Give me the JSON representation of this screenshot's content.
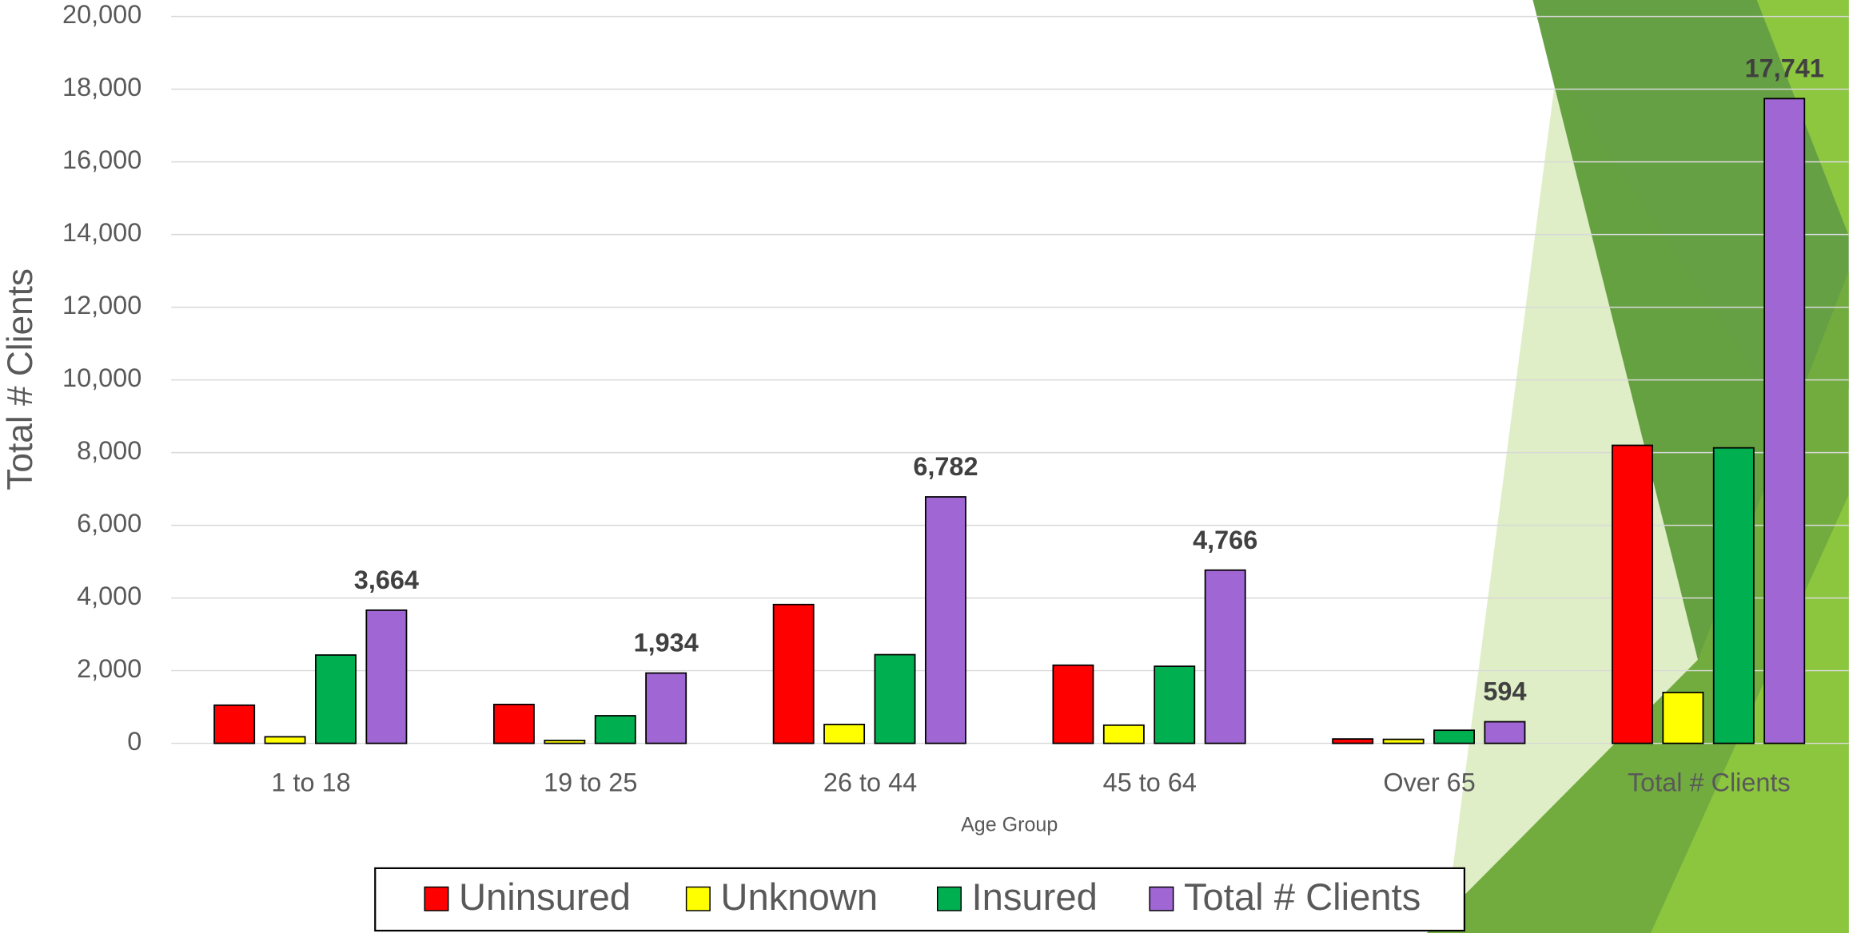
{
  "chart_data": {
    "type": "bar",
    "x_label": "Age Group",
    "y_label": "Total # Clients",
    "categories": [
      "1 to 18",
      "19 to 25",
      "26 to 44",
      "45 to 64",
      "Over 65",
      "Total # Clients"
    ],
    "series": [
      {
        "name": "Uninsured",
        "color": "#ff0000",
        "values": [
          1050,
          1070,
          3820,
          2150,
          120,
          8200
        ]
      },
      {
        "name": "Unknown",
        "color": "#ffff00",
        "values": [
          180,
          80,
          520,
          500,
          110,
          1400
        ]
      },
      {
        "name": "Insured",
        "color": "#00b050",
        "values": [
          2430,
          760,
          2440,
          2120,
          360,
          8130
        ]
      },
      {
        "name": "Total # Clients",
        "color": "#a066d3",
        "values": [
          3664,
          1934,
          6782,
          4766,
          594,
          17741
        ],
        "value_labels": [
          "3,664",
          "1,934",
          "6,782",
          "4,766",
          "594",
          "17,741"
        ]
      }
    ],
    "ylim": [
      0,
      20000
    ],
    "yticks": [
      0,
      {
        "value": 2000,
        "label": "2,000"
      },
      {
        "value": 4000,
        "label": "4,000"
      },
      {
        "value": 6000,
        "label": "6,000"
      },
      {
        "value": 8000,
        "label": "8,000"
      },
      {
        "value": 10000,
        "label": "10,000"
      },
      {
        "value": 12000,
        "label": "12,000"
      },
      {
        "value": 14000,
        "label": "14,000"
      },
      {
        "value": 16000,
        "label": "16,000"
      },
      {
        "value": 18000,
        "label": "18,000"
      },
      {
        "value": 20000,
        "label": "20,000"
      }
    ],
    "grid": true,
    "legend": "bottom"
  }
}
